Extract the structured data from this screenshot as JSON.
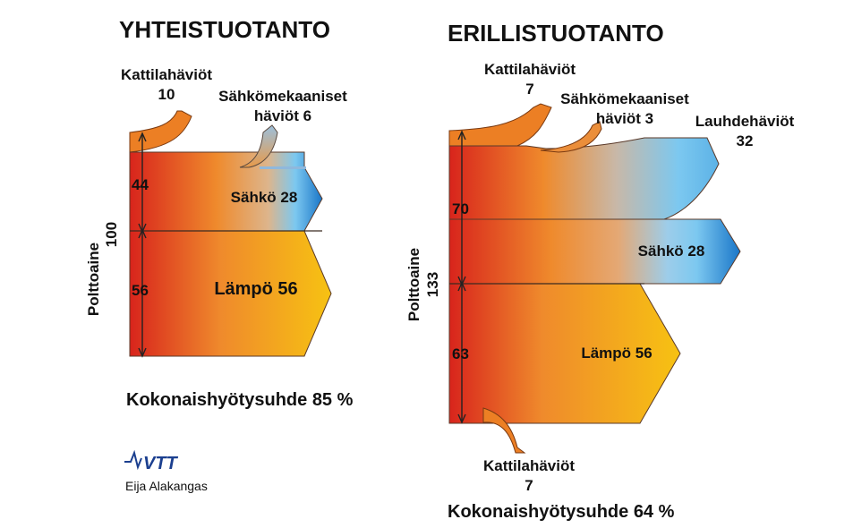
{
  "left": {
    "title": "YHTEISTUOTANTO",
    "fuel_label": "Polttoaine",
    "fuel_value": "100",
    "split_upper": "44",
    "split_lower": "56",
    "boiler_loss_label": "Kattilahäviöt",
    "boiler_loss_value": "10",
    "elmech_loss_line1": "Sähkömekaaniset",
    "elmech_loss_line2": "häviöt 6",
    "electricity": "Sähkö 28",
    "heat": "Lämpö 56",
    "efficiency": "Kokonaishyötysuhde 85 %"
  },
  "right": {
    "title": "ERILLISTUOTANTO",
    "fuel_label": "Polttoaine",
    "fuel_value": "133",
    "split_upper": "70",
    "split_lower": "63",
    "boiler_loss_label": "Kattilahäviöt",
    "boiler_loss_value": "7",
    "elmech_loss_line1": "Sähkömekaaniset",
    "elmech_loss_line2": "häviöt 3",
    "condenser_loss_label": "Lauhdehäviöt",
    "condenser_loss_value": "32",
    "electricity": "Sähkö 28",
    "heat": "Lämpö 56",
    "bottom_loss_label": "Kattilahäviöt",
    "bottom_loss_value": "7",
    "efficiency": "Kokonaishyötysuhde 64 %"
  },
  "logo_text": "VTT",
  "author": "Eija Alakangas",
  "colors": {
    "fuel_red": "#d8241c",
    "orange": "#ef8a2c",
    "heat_yellow": "#f7c212",
    "electric_blue": "#1a76c8",
    "light_blue": "#7cc8f0"
  }
}
